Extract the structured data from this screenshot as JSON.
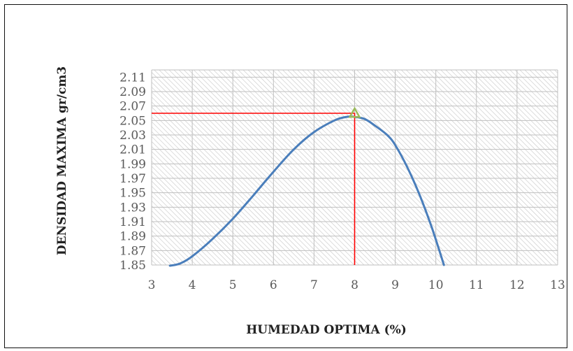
{
  "chart_data": {
    "type": "line",
    "title": "",
    "xlabel": "HUMEDAD OPTIMA (%)",
    "ylabel": "DENSIDAD MAXIMA gr/cm3",
    "xlim": [
      3,
      13
    ],
    "ylim": [
      1.85,
      2.12
    ],
    "xticks": [
      "3",
      "4",
      "5",
      "6",
      "7",
      "8",
      "9",
      "10",
      "11",
      "12",
      "13"
    ],
    "yticks": [
      "1.85",
      "1.87",
      "1.89",
      "1.91",
      "1.93",
      "1.95",
      "1.97",
      "1.99",
      "2.01",
      "2.03",
      "2.05",
      "2.07",
      "2.09",
      "2.11"
    ],
    "grid": true,
    "plot_background": "diagonal hatch",
    "series": [
      {
        "name": "",
        "color": "#4a7ebb",
        "x": [
          3.45,
          3.7,
          4.0,
          4.5,
          5.0,
          5.5,
          6.0,
          6.5,
          7.0,
          7.5,
          7.8,
          8.0,
          8.25,
          8.5,
          8.8,
          9.0,
          9.3,
          9.6,
          9.9,
          10.2
        ],
        "y": [
          1.849,
          1.852,
          1.862,
          1.886,
          1.914,
          1.946,
          1.979,
          2.01,
          2.034,
          2.05,
          2.055,
          2.055,
          2.052,
          2.043,
          2.03,
          2.016,
          1.985,
          1.947,
          1.902,
          1.85
        ]
      }
    ],
    "optimum": {
      "x": 8.0,
      "y": 2.06,
      "marker": "triangle",
      "marker_color": "#9bbb59",
      "guide_color": "#ff0000"
    }
  }
}
